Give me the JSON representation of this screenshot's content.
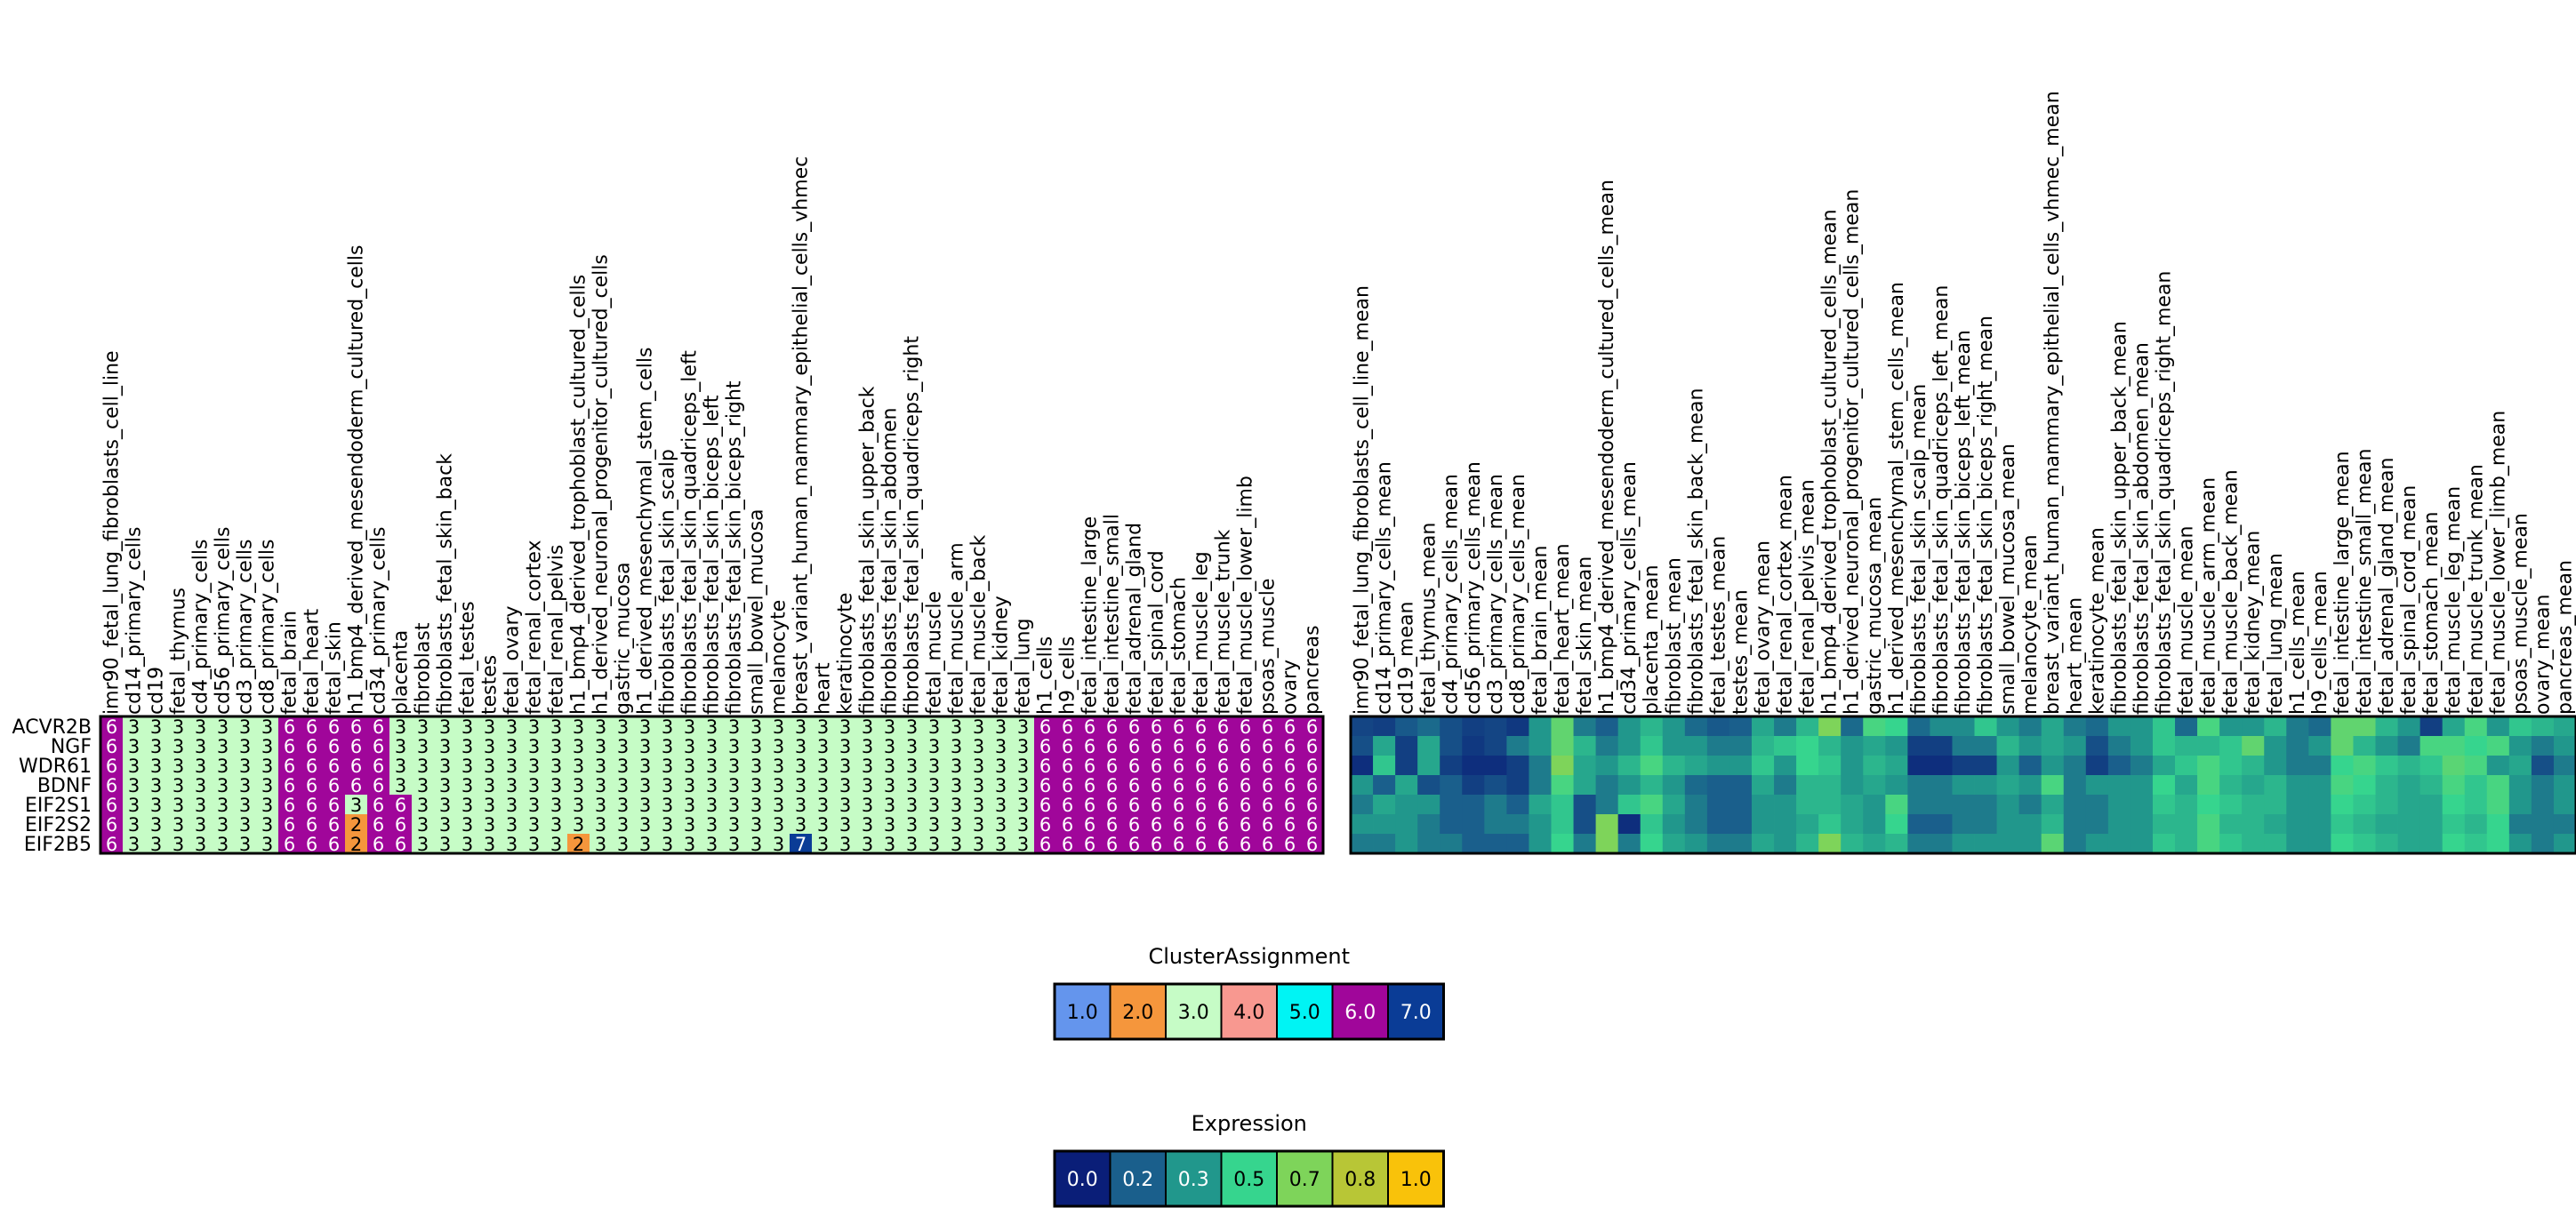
{
  "chart_data": [
    {
      "type": "heatmap",
      "title": "",
      "rows": [
        "ACVR2B",
        "NGF",
        "WDR61",
        "BDNF",
        "EIF2S1",
        "EIF2S2",
        "EIF2B5"
      ],
      "columns": [
        "imr90_fetal_lung_fibroblasts_cell_line",
        "cd14_primary_cells",
        "cd19",
        "fetal_thymus",
        "cd4_primary_cells",
        "cd56_primary_cells",
        "cd3_primary_cells",
        "cd8_primary_cells",
        "fetal_brain",
        "fetal_heart",
        "fetal_skin",
        "h1_bmp4_derived_mesendoderm_cultured_cells",
        "cd34_primary_cells",
        "placenta",
        "fibroblast",
        "fibroblasts_fetal_skin_back",
        "fetal_testes",
        "testes",
        "fetal_ovary",
        "fetal_renal_cortex",
        "fetal_renal_pelvis",
        "h1_bmp4_derived_trophoblast_cultured_cells",
        "h1_derived_neuronal_progenitor_cultured_cells",
        "gastric_mucosa",
        "h1_derived_mesenchymal_stem_cells",
        "fibroblasts_fetal_skin_scalp",
        "fibroblasts_fetal_skin_quadriceps_left",
        "fibroblasts_fetal_skin_biceps_left",
        "fibroblasts_fetal_skin_biceps_right",
        "small_bowel_mucosa",
        "melanocyte",
        "breast_variant_human_mammary_epithelial_cells_vhmec",
        "heart",
        "keratinocyte",
        "fibroblasts_fetal_skin_upper_back",
        "fibroblasts_fetal_skin_abdomen",
        "fibroblasts_fetal_skin_quadriceps_right",
        "fetal_muscle",
        "fetal_muscle_arm",
        "fetal_muscle_back",
        "fetal_kidney",
        "fetal_lung",
        "h1_cells",
        "h9_cells",
        "fetal_intestine_large",
        "fetal_intestine_small",
        "fetal_adrenal_gland",
        "fetal_spinal_cord",
        "fetal_stomach",
        "fetal_muscle_leg",
        "fetal_muscle_trunk",
        "fetal_muscle_lower_limb",
        "psoas_muscle",
        "ovary",
        "pancreas"
      ],
      "values": [
        [
          6,
          3,
          3,
          3,
          3,
          3,
          3,
          3,
          6,
          6,
          6,
          6,
          6,
          3,
          3,
          3,
          3,
          3,
          3,
          3,
          3,
          3,
          3,
          3,
          3,
          3,
          3,
          3,
          3,
          3,
          3,
          3,
          3,
          3,
          3,
          3,
          3,
          3,
          3,
          3,
          3,
          3,
          6,
          6,
          6,
          6,
          6,
          6,
          6,
          6,
          6,
          6,
          6,
          6,
          6
        ],
        [
          6,
          3,
          3,
          3,
          3,
          3,
          3,
          3,
          6,
          6,
          6,
          6,
          6,
          3,
          3,
          3,
          3,
          3,
          3,
          3,
          3,
          3,
          3,
          3,
          3,
          3,
          3,
          3,
          3,
          3,
          3,
          3,
          3,
          3,
          3,
          3,
          3,
          3,
          3,
          3,
          3,
          3,
          6,
          6,
          6,
          6,
          6,
          6,
          6,
          6,
          6,
          6,
          6,
          6,
          6
        ],
        [
          6,
          3,
          3,
          3,
          3,
          3,
          3,
          3,
          6,
          6,
          6,
          6,
          6,
          3,
          3,
          3,
          3,
          3,
          3,
          3,
          3,
          3,
          3,
          3,
          3,
          3,
          3,
          3,
          3,
          3,
          3,
          3,
          3,
          3,
          3,
          3,
          3,
          3,
          3,
          3,
          3,
          3,
          6,
          6,
          6,
          6,
          6,
          6,
          6,
          6,
          6,
          6,
          6,
          6,
          6
        ],
        [
          6,
          3,
          3,
          3,
          3,
          3,
          3,
          3,
          6,
          6,
          6,
          6,
          6,
          3,
          3,
          3,
          3,
          3,
          3,
          3,
          3,
          3,
          3,
          3,
          3,
          3,
          3,
          3,
          3,
          3,
          3,
          3,
          3,
          3,
          3,
          3,
          3,
          3,
          3,
          3,
          3,
          3,
          6,
          6,
          6,
          6,
          6,
          6,
          6,
          6,
          6,
          6,
          6,
          6,
          6
        ],
        [
          6,
          3,
          3,
          3,
          3,
          3,
          3,
          3,
          6,
          6,
          6,
          3,
          6,
          6,
          3,
          3,
          3,
          3,
          3,
          3,
          3,
          3,
          3,
          3,
          3,
          3,
          3,
          3,
          3,
          3,
          3,
          3,
          3,
          3,
          3,
          3,
          3,
          3,
          3,
          3,
          3,
          3,
          6,
          6,
          6,
          6,
          6,
          6,
          6,
          6,
          6,
          6,
          6,
          6,
          6
        ],
        [
          6,
          3,
          3,
          3,
          3,
          3,
          3,
          3,
          6,
          6,
          6,
          2,
          6,
          6,
          3,
          3,
          3,
          3,
          3,
          3,
          3,
          3,
          3,
          3,
          3,
          3,
          3,
          3,
          3,
          3,
          3,
          3,
          3,
          3,
          3,
          3,
          3,
          3,
          3,
          3,
          3,
          3,
          6,
          6,
          6,
          6,
          6,
          6,
          6,
          6,
          6,
          6,
          6,
          6,
          6
        ],
        [
          6,
          3,
          3,
          3,
          3,
          3,
          3,
          3,
          6,
          6,
          6,
          2,
          6,
          6,
          3,
          3,
          3,
          3,
          3,
          3,
          3,
          2,
          3,
          3,
          3,
          3,
          3,
          3,
          3,
          3,
          3,
          7,
          3,
          3,
          3,
          3,
          3,
          3,
          3,
          3,
          3,
          3,
          6,
          6,
          6,
          6,
          6,
          6,
          6,
          6,
          6,
          6,
          6,
          6,
          6
        ]
      ],
      "legend": {
        "title": "ClusterAssignment",
        "items": [
          {
            "label": "1.0",
            "value": 1,
            "color": "#6495ed"
          },
          {
            "label": "2.0",
            "value": 2,
            "color": "#f5963c"
          },
          {
            "label": "3.0",
            "value": 3,
            "color": "#c6fcc6"
          },
          {
            "label": "4.0",
            "value": 4,
            "color": "#f89890"
          },
          {
            "label": "5.0",
            "value": 5,
            "color": "#00f4f4"
          },
          {
            "label": "6.0",
            "value": 6,
            "color": "#a0069a"
          },
          {
            "label": "7.0",
            "value": 7,
            "color": "#0a3c96"
          }
        ]
      }
    },
    {
      "type": "heatmap",
      "title": "",
      "rows": [
        "ACVR2B",
        "NGF",
        "WDR61",
        "BDNF",
        "EIF2S1",
        "EIF2S2",
        "EIF2B5"
      ],
      "columns": [
        "imr90_fetal_lung_fibroblasts_cell_line_mean",
        "cd14_primary_cells_mean",
        "cd19_mean",
        "fetal_thymus_mean",
        "cd4_primary_cells_mean",
        "cd56_primary_cells_mean",
        "cd3_primary_cells_mean",
        "cd8_primary_cells_mean",
        "fetal_brain_mean",
        "fetal_heart_mean",
        "fetal_skin_mean",
        "h1_bmp4_derived_mesendoderm_cultured_cells_mean",
        "cd34_primary_cells_mean",
        "placenta_mean",
        "fibroblast_mean",
        "fibroblasts_fetal_skin_back_mean",
        "fetal_testes_mean",
        "testes_mean",
        "fetal_ovary_mean",
        "fetal_renal_cortex_mean",
        "fetal_renal_pelvis_mean",
        "h1_bmp4_derived_trophoblast_cultured_cells_mean",
        "h1_derived_neuronal_progenitor_cultured_cells_mean",
        "gastric_mucosa_mean",
        "h1_derived_mesenchymal_stem_cells_mean",
        "fibroblasts_fetal_skin_scalp_mean",
        "fibroblasts_fetal_skin_quadriceps_left_mean",
        "fibroblasts_fetal_skin_biceps_left_mean",
        "fibroblasts_fetal_skin_biceps_right_mean",
        "small_bowel_mucosa_mean",
        "melanocyte_mean",
        "breast_variant_human_mammary_epithelial_cells_vhmec_mean",
        "heart_mean",
        "keratinocyte_mean",
        "fibroblasts_fetal_skin_upper_back_mean",
        "fibroblasts_fetal_skin_abdomen_mean",
        "fibroblasts_fetal_skin_quadriceps_right_mean",
        "fetal_muscle_mean",
        "fetal_muscle_arm_mean",
        "fetal_muscle_back_mean",
        "fetal_kidney_mean",
        "fetal_lung_mean",
        "h1_cells_mean",
        "h9_cells_mean",
        "fetal_intestine_large_mean",
        "fetal_intestine_small_mean",
        "fetal_adrenal_gland_mean",
        "fetal_spinal_cord_mean",
        "fetal_stomach_mean",
        "fetal_muscle_leg_mean",
        "fetal_muscle_trunk_mean",
        "fetal_muscle_lower_limb_mean",
        "psoas_muscle_mean",
        "ovary_mean",
        "pancreas_mean"
      ],
      "values": [
        [
          0.12,
          0.1,
          0.18,
          0.22,
          0.15,
          0.1,
          0.12,
          0.08,
          0.3,
          0.62,
          0.25,
          0.2,
          0.3,
          0.4,
          0.3,
          0.22,
          0.18,
          0.2,
          0.35,
          0.25,
          0.4,
          0.7,
          0.22,
          0.55,
          0.5,
          0.22,
          0.28,
          0.28,
          0.45,
          0.3,
          0.25,
          0.35,
          0.25,
          0.22,
          0.3,
          0.3,
          0.45,
          0.22,
          0.55,
          0.3,
          0.3,
          0.4,
          0.25,
          0.22,
          0.62,
          0.62,
          0.4,
          0.3,
          0.1,
          0.35,
          0.55,
          0.3,
          0.45,
          0.4,
          0.35
        ],
        [
          0.15,
          0.35,
          0.1,
          0.35,
          0.15,
          0.08,
          0.12,
          0.25,
          0.3,
          0.62,
          0.4,
          0.25,
          0.3,
          0.45,
          0.3,
          0.3,
          0.25,
          0.25,
          0.4,
          0.45,
          0.5,
          0.4,
          0.3,
          0.35,
          0.3,
          0.1,
          0.1,
          0.25,
          0.25,
          0.4,
          0.3,
          0.35,
          0.3,
          0.15,
          0.25,
          0.3,
          0.45,
          0.4,
          0.4,
          0.45,
          0.62,
          0.3,
          0.25,
          0.3,
          0.62,
          0.4,
          0.3,
          0.25,
          0.55,
          0.55,
          0.5,
          0.55,
          0.3,
          0.25,
          0.3
        ],
        [
          0.05,
          0.45,
          0.1,
          0.35,
          0.1,
          0.05,
          0.05,
          0.1,
          0.25,
          0.7,
          0.35,
          0.3,
          0.4,
          0.55,
          0.4,
          0.35,
          0.3,
          0.3,
          0.45,
          0.3,
          0.5,
          0.45,
          0.3,
          0.4,
          0.35,
          0.05,
          0.05,
          0.1,
          0.1,
          0.3,
          0.2,
          0.3,
          0.25,
          0.1,
          0.2,
          0.25,
          0.35,
          0.45,
          0.55,
          0.45,
          0.4,
          0.3,
          0.25,
          0.25,
          0.5,
          0.55,
          0.45,
          0.4,
          0.45,
          0.6,
          0.55,
          0.3,
          0.35,
          0.15,
          0.25
        ],
        [
          0.3,
          0.2,
          0.35,
          0.15,
          0.2,
          0.1,
          0.15,
          0.1,
          0.25,
          0.55,
          0.35,
          0.25,
          0.3,
          0.4,
          0.3,
          0.22,
          0.2,
          0.2,
          0.35,
          0.25,
          0.4,
          0.4,
          0.3,
          0.35,
          0.3,
          0.25,
          0.25,
          0.3,
          0.3,
          0.35,
          0.3,
          0.55,
          0.25,
          0.3,
          0.3,
          0.3,
          0.5,
          0.35,
          0.55,
          0.4,
          0.35,
          0.4,
          0.3,
          0.3,
          0.55,
          0.5,
          0.4,
          0.35,
          0.4,
          0.55,
          0.45,
          0.55,
          0.3,
          0.25,
          0.3
        ],
        [
          0.25,
          0.35,
          0.3,
          0.3,
          0.2,
          0.2,
          0.25,
          0.2,
          0.35,
          0.45,
          0.15,
          0.25,
          0.45,
          0.55,
          0.35,
          0.25,
          0.2,
          0.2,
          0.3,
          0.3,
          0.4,
          0.4,
          0.35,
          0.3,
          0.55,
          0.25,
          0.25,
          0.25,
          0.25,
          0.3,
          0.25,
          0.35,
          0.25,
          0.25,
          0.3,
          0.3,
          0.45,
          0.4,
          0.5,
          0.45,
          0.4,
          0.4,
          0.3,
          0.3,
          0.5,
          0.45,
          0.4,
          0.35,
          0.35,
          0.5,
          0.45,
          0.55,
          0.3,
          0.25,
          0.3
        ],
        [
          0.3,
          0.3,
          0.3,
          0.25,
          0.2,
          0.2,
          0.25,
          0.25,
          0.3,
          0.45,
          0.15,
          0.7,
          0.05,
          0.45,
          0.3,
          0.25,
          0.2,
          0.2,
          0.3,
          0.3,
          0.35,
          0.45,
          0.35,
          0.3,
          0.5,
          0.2,
          0.2,
          0.25,
          0.25,
          0.3,
          0.3,
          0.4,
          0.25,
          0.25,
          0.3,
          0.3,
          0.4,
          0.4,
          0.55,
          0.4,
          0.4,
          0.35,
          0.3,
          0.3,
          0.45,
          0.4,
          0.35,
          0.35,
          0.35,
          0.45,
          0.4,
          0.5,
          0.25,
          0.25,
          0.25
        ],
        [
          0.25,
          0.25,
          0.3,
          0.25,
          0.25,
          0.2,
          0.2,
          0.2,
          0.3,
          0.5,
          0.25,
          0.7,
          0.25,
          0.5,
          0.35,
          0.3,
          0.25,
          0.25,
          0.35,
          0.3,
          0.4,
          0.7,
          0.4,
          0.35,
          0.4,
          0.25,
          0.25,
          0.3,
          0.3,
          0.3,
          0.3,
          0.6,
          0.25,
          0.3,
          0.3,
          0.3,
          0.45,
          0.4,
          0.55,
          0.45,
          0.4,
          0.4,
          0.3,
          0.3,
          0.5,
          0.45,
          0.4,
          0.35,
          0.35,
          0.5,
          0.45,
          0.5,
          0.3,
          0.25,
          0.3
        ]
      ],
      "legend": {
        "title": "Expression",
        "items": [
          {
            "label": "0.0",
            "value": 0.0,
            "color": "#0a1e78"
          },
          {
            "label": "0.2",
            "value": 0.2,
            "color": "#1a5f8c"
          },
          {
            "label": "0.3",
            "value": 0.3,
            "color": "#21978c"
          },
          {
            "label": "0.5",
            "value": 0.5,
            "color": "#36d58e"
          },
          {
            "label": "0.7",
            "value": 0.7,
            "color": "#7ed45a"
          },
          {
            "label": "0.8",
            "value": 0.8,
            "color": "#b8c636"
          },
          {
            "label": "1.0",
            "value": 1.0,
            "color": "#f9c20a"
          }
        ]
      }
    }
  ]
}
